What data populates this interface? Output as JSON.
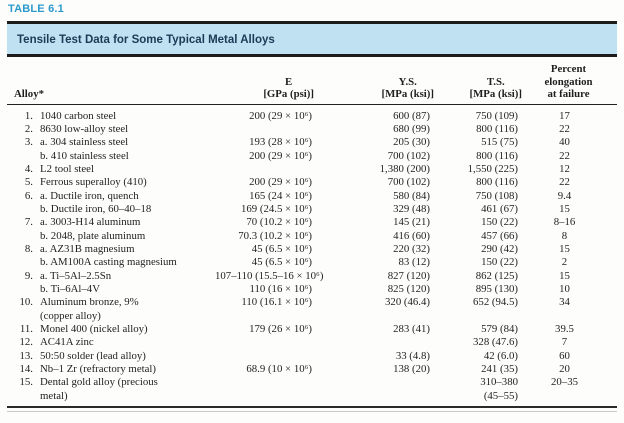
{
  "table_label": "TABLE 6.1",
  "banner_title": "Tensile Test Data for Some Typical Metal Alloys",
  "colors": {
    "accent_blue": "#2b9acb",
    "banner_bg": "#bfe1f2",
    "banner_text": "#1d3a56"
  },
  "columns": {
    "alloy": "Alloy*",
    "e_line1": "E",
    "e_line2": "[GPa (psi)]",
    "ys_line1": "Y.S.",
    "ys_line2": "[MPa (ksi)]",
    "ts_line1": "T.S.",
    "ts_line2": "[MPa (ksi)]",
    "el_line1": "Percent",
    "el_line2": "elongation",
    "el_line3": "at failure"
  },
  "rows": [
    {
      "num": "1.",
      "name": "1040 carbon steel",
      "e": "200 (29 × 10⁶)",
      "ys": "600 (87)",
      "ts": "750 (109)",
      "el": "17"
    },
    {
      "num": "2.",
      "name": "8630 low-alloy steel",
      "e": "",
      "ys": "680 (99)",
      "ts": "800 (116)",
      "el": "22"
    },
    {
      "num": "3.",
      "name": "a. 304 stainless steel",
      "e": "193 (28 × 10⁶)",
      "ys": "205 (30)",
      "ts": "515 (75)",
      "el": "40"
    },
    {
      "num": "",
      "name": "b. 410 stainless steel",
      "e": "200 (29 × 10⁶)",
      "ys": "700 (102)",
      "ts": "800 (116)",
      "el": "22"
    },
    {
      "num": "4.",
      "name": "L2 tool steel",
      "e": "",
      "ys": "1,380 (200)",
      "ts": "1,550 (225)",
      "el": "12"
    },
    {
      "num": "5.",
      "name": "Ferrous superalloy (410)",
      "e": "200 (29 × 10⁶)",
      "ys": "700 (102)",
      "ts": "800 (116)",
      "el": "22"
    },
    {
      "num": "6.",
      "name": "a. Ductile iron, quench",
      "e": "165 (24 × 10⁶)",
      "ys": "580 (84)",
      "ts": "750 (108)",
      "el": "9.4"
    },
    {
      "num": "",
      "name": "b. Ductile iron, 60–40–18",
      "e": "169 (24.5 × 10⁶)",
      "ys": "329 (48)",
      "ts": "461 (67)",
      "el": "15"
    },
    {
      "num": "7.",
      "name": "a. 3003-H14 aluminum",
      "e": "70 (10.2 × 10⁶)",
      "ys": "145 (21)",
      "ts": "150 (22)",
      "el": "8–16"
    },
    {
      "num": "",
      "name": "b. 2048, plate aluminum",
      "e": "70.3 (10.2 × 10⁶)",
      "ys": "416 (60)",
      "ts": "457 (66)",
      "el": "8"
    },
    {
      "num": "8.",
      "name": "a. AZ31B magnesium",
      "e": "45 (6.5 × 10⁶)",
      "ys": "220 (32)",
      "ts": "290 (42)",
      "el": "15"
    },
    {
      "num": "",
      "name": "b. AM100A casting magnesium",
      "e": "45 (6.5 × 10⁶)",
      "ys": "83 (12)",
      "ts": "150 (22)",
      "el": "2"
    },
    {
      "num": "9.",
      "name": "a. Ti–5Al–2.5Sn",
      "e": "107–110 (15.5–16 × 10⁶)",
      "ys": "827 (120)",
      "ts": "862 (125)",
      "el": "15"
    },
    {
      "num": "",
      "name": "b. Ti–6Al–4V",
      "e": "110 (16 × 10⁶)",
      "ys": "825 (120)",
      "ts": "895 (130)",
      "el": "10"
    },
    {
      "num": "10.",
      "name": "Aluminum bronze, 9%",
      "e": "110 (16.1 × 10⁶)",
      "ys": "320 (46.4)",
      "ts": "652 (94.5)",
      "el": "34"
    },
    {
      "num": "",
      "name": "(copper alloy)",
      "e": "",
      "ys": "",
      "ts": "",
      "el": ""
    },
    {
      "num": "11.",
      "name": "Monel 400 (nickel alloy)",
      "e": "179 (26 × 10⁶)",
      "ys": "283 (41)",
      "ts": "579 (84)",
      "el": "39.5"
    },
    {
      "num": "12.",
      "name": "AC41A zinc",
      "e": "",
      "ys": "",
      "ts": "328 (47.6)",
      "el": "7"
    },
    {
      "num": "13.",
      "name": "50:50 solder (lead alloy)",
      "e": "",
      "ys": "33 (4.8)",
      "ts": "42 (6.0)",
      "el": "60"
    },
    {
      "num": "14.",
      "name": "Nb–1 Zr (refractory metal)",
      "e": "68.9 (10 × 10⁶)",
      "ys": "138 (20)",
      "ts": "241 (35)",
      "el": "20"
    },
    {
      "num": "15.",
      "name": "Dental gold alloy (precious",
      "e": "",
      "ys": "",
      "ts": "310–380",
      "el": "20–35"
    },
    {
      "num": "",
      "name": "metal)",
      "e": "",
      "ys": "",
      "ts": "(45–55)",
      "el": ""
    }
  ]
}
